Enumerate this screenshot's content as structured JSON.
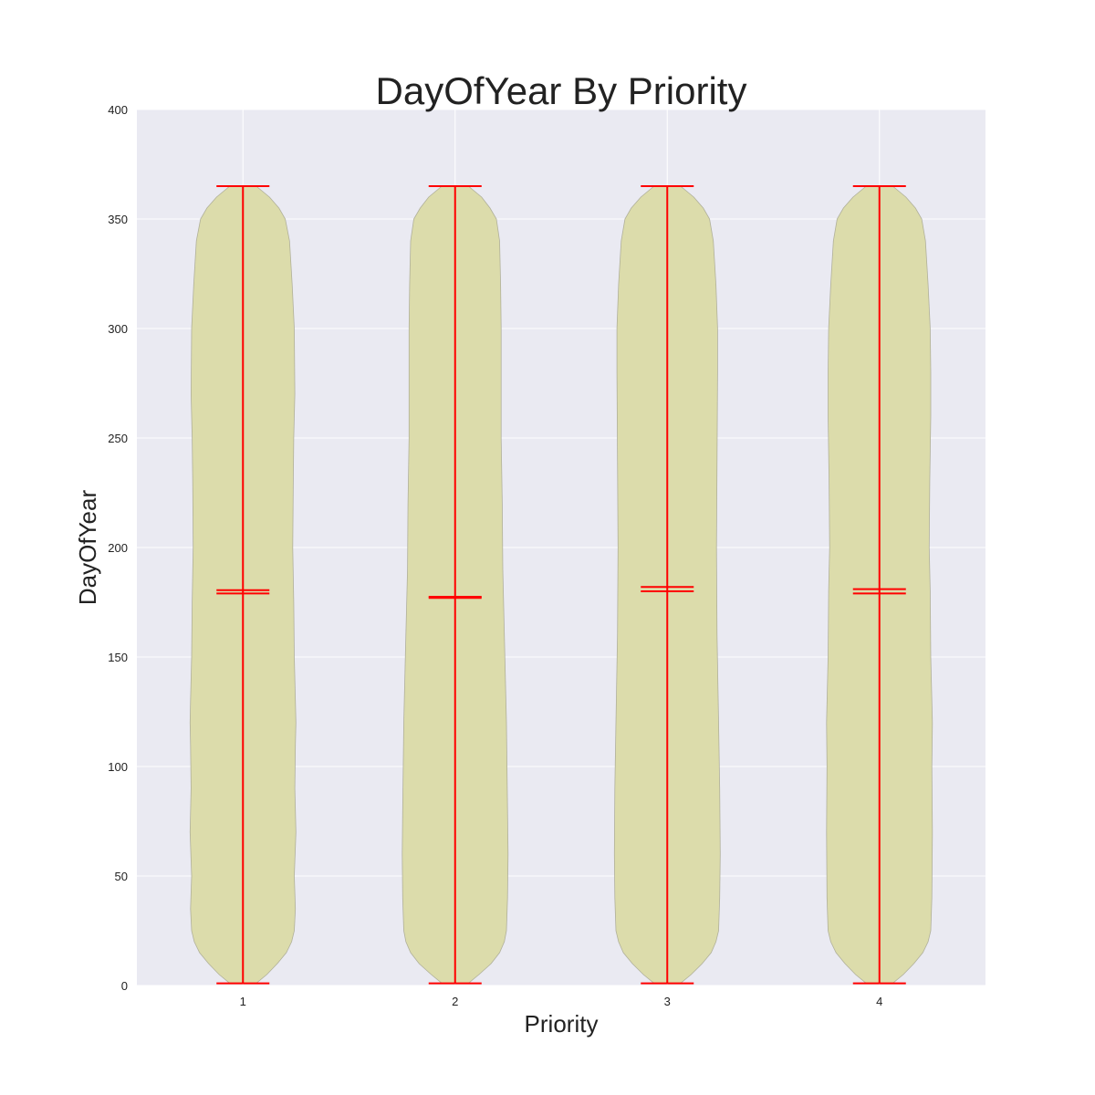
{
  "chart_data": {
    "type": "violin",
    "title": "DayOfYear By Priority",
    "xlabel": "Priority",
    "ylabel": "DayOfYear",
    "ylim": [
      0,
      400
    ],
    "yticks": [
      0,
      50,
      100,
      150,
      200,
      250,
      300,
      350,
      400
    ],
    "categories": [
      "1",
      "2",
      "3",
      "4"
    ],
    "grid": true,
    "colors": {
      "background": "#eaeaf2",
      "grid": "#ffffff",
      "violin_fill": "#dcdcab",
      "violin_edge": "#b0b09a",
      "lines": "#ff0000"
    },
    "violins": [
      {
        "category": "1",
        "min": 1,
        "max": 365,
        "mean": 180.5,
        "median": 179,
        "profile": [
          [
            1,
            0.25
          ],
          [
            5,
            0.45
          ],
          [
            10,
            0.65
          ],
          [
            15,
            0.82
          ],
          [
            20,
            0.92
          ],
          [
            25,
            0.97
          ],
          [
            35,
            0.99
          ],
          [
            50,
            0.97
          ],
          [
            70,
            1.0
          ],
          [
            90,
            0.98
          ],
          [
            110,
            0.99
          ],
          [
            120,
            1.0
          ],
          [
            130,
            0.99
          ],
          [
            150,
            0.97
          ],
          [
            175,
            0.96
          ],
          [
            200,
            0.94
          ],
          [
            230,
            0.95
          ],
          [
            250,
            0.96
          ],
          [
            270,
            0.98
          ],
          [
            300,
            0.97
          ],
          [
            320,
            0.93
          ],
          [
            340,
            0.88
          ],
          [
            350,
            0.8
          ],
          [
            355,
            0.68
          ],
          [
            360,
            0.5
          ],
          [
            365,
            0.25
          ]
        ]
      },
      {
        "category": "2",
        "min": 1,
        "max": 365,
        "mean": 177.5,
        "median": 177,
        "profile": [
          [
            1,
            0.25
          ],
          [
            5,
            0.45
          ],
          [
            10,
            0.68
          ],
          [
            15,
            0.84
          ],
          [
            20,
            0.93
          ],
          [
            25,
            0.97
          ],
          [
            40,
            0.99
          ],
          [
            60,
            1.0
          ],
          [
            80,
            0.99
          ],
          [
            120,
            0.97
          ],
          [
            160,
            0.93
          ],
          [
            190,
            0.9
          ],
          [
            220,
            0.89
          ],
          [
            250,
            0.87
          ],
          [
            280,
            0.87
          ],
          [
            300,
            0.87
          ],
          [
            320,
            0.86
          ],
          [
            340,
            0.84
          ],
          [
            350,
            0.78
          ],
          [
            355,
            0.66
          ],
          [
            360,
            0.5
          ],
          [
            365,
            0.25
          ]
        ]
      },
      {
        "category": "3",
        "min": 1,
        "max": 365,
        "mean": 182,
        "median": 180,
        "profile": [
          [
            1,
            0.25
          ],
          [
            5,
            0.45
          ],
          [
            10,
            0.66
          ],
          [
            15,
            0.83
          ],
          [
            20,
            0.92
          ],
          [
            25,
            0.97
          ],
          [
            40,
            0.99
          ],
          [
            60,
            1.0
          ],
          [
            90,
            0.99
          ],
          [
            120,
            0.97
          ],
          [
            160,
            0.94
          ],
          [
            200,
            0.93
          ],
          [
            240,
            0.94
          ],
          [
            280,
            0.95
          ],
          [
            300,
            0.95
          ],
          [
            320,
            0.92
          ],
          [
            340,
            0.87
          ],
          [
            350,
            0.8
          ],
          [
            355,
            0.68
          ],
          [
            360,
            0.5
          ],
          [
            365,
            0.25
          ]
        ]
      },
      {
        "category": "4",
        "min": 1,
        "max": 365,
        "mean": 181,
        "median": 179,
        "profile": [
          [
            1,
            0.25
          ],
          [
            5,
            0.45
          ],
          [
            10,
            0.65
          ],
          [
            15,
            0.82
          ],
          [
            20,
            0.92
          ],
          [
            25,
            0.97
          ],
          [
            40,
            0.99
          ],
          [
            70,
            1.0
          ],
          [
            100,
            0.99
          ],
          [
            120,
            1.0
          ],
          [
            150,
            0.97
          ],
          [
            180,
            0.96
          ],
          [
            200,
            0.94
          ],
          [
            230,
            0.95
          ],
          [
            260,
            0.97
          ],
          [
            280,
            0.97
          ],
          [
            300,
            0.96
          ],
          [
            320,
            0.92
          ],
          [
            340,
            0.87
          ],
          [
            350,
            0.8
          ],
          [
            355,
            0.68
          ],
          [
            360,
            0.5
          ],
          [
            365,
            0.25
          ]
        ]
      }
    ]
  }
}
